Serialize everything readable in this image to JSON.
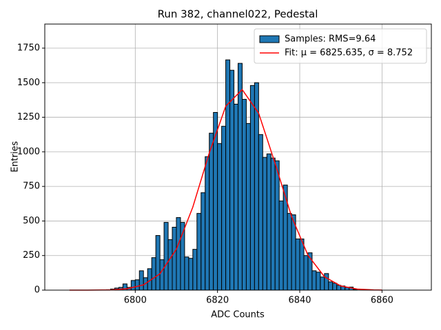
{
  "chart_data": {
    "type": "histogram",
    "title": "Run 382, channel022, Pedestal",
    "xlabel": "ADC Counts",
    "ylabel": "Entries",
    "name": "Samples: RMS=9.64",
    "color": "#1f77b4",
    "bins": [
      6793,
      6794,
      6795,
      6796,
      6797,
      6798,
      6799,
      6800,
      6801,
      6802,
      6803,
      6804,
      6805,
      6806,
      6807,
      6808,
      6809,
      6810,
      6811,
      6812,
      6813,
      6814,
      6815,
      6816,
      6817,
      6818,
      6819,
      6820,
      6821,
      6822,
      6823,
      6824,
      6825,
      6826,
      6827,
      6828,
      6829,
      6830,
      6831,
      6832,
      6833,
      6834,
      6835,
      6836,
      6837,
      6838,
      6839,
      6840,
      6841,
      6842,
      6843,
      6844,
      6845,
      6846,
      6847,
      6848,
      6849,
      6850,
      6851,
      6852,
      6853,
      6854
    ],
    "values": [
      3,
      8,
      15,
      20,
      45,
      20,
      70,
      75,
      140,
      90,
      155,
      235,
      395,
      220,
      490,
      365,
      455,
      525,
      490,
      240,
      230,
      295,
      555,
      705,
      965,
      1135,
      1285,
      1060,
      1185,
      1665,
      1590,
      1345,
      1640,
      1380,
      1205,
      1480,
      1500,
      1125,
      960,
      985,
      955,
      935,
      645,
      760,
      555,
      545,
      370,
      370,
      250,
      270,
      140,
      130,
      95,
      120,
      60,
      50,
      35,
      30,
      20,
      22,
      5
    ],
    "line": {
      "name": "Fit: μ = 6825.635, σ = 8.752",
      "color": "#ff0000",
      "x": [
        6784,
        6790,
        6794,
        6798,
        6802,
        6806,
        6810,
        6814,
        6818,
        6822,
        6826,
        6830,
        6834,
        6838,
        6842,
        6846,
        6850,
        6854,
        6858,
        6860
      ],
      "values": [
        0,
        0.4,
        2.1,
        10,
        38,
        118,
        296,
        601,
        992,
        1330,
        1450,
        1280,
        917,
        533,
        252,
        97,
        30,
        7.5,
        1.6,
        0.7
      ]
    },
    "xlim": [
      6778,
      6872
    ],
    "ylim": [
      0,
      1924
    ],
    "xticks": [
      6800,
      6820,
      6840,
      6860
    ],
    "yticks": [
      0,
      250,
      500,
      750,
      1000,
      1250,
      1500,
      1750
    ],
    "grid": true,
    "legend": "upper right"
  }
}
